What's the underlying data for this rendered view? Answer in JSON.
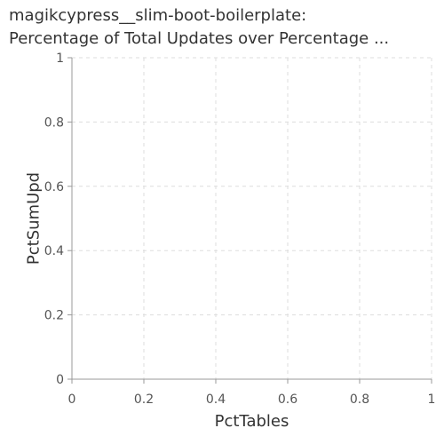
{
  "chart_data": {
    "type": "scatter",
    "title": "magikcypress__slim-boot-boilerplate:",
    "subtitle": "Percentage of Total Updates over Percentage ...",
    "xlabel": "PctTables",
    "ylabel": "PctSumUpd",
    "xlim": [
      0,
      1
    ],
    "ylim": [
      0,
      1
    ],
    "xticks": [
      "0",
      "0.2",
      "0.4",
      "0.6",
      "0.8",
      "1"
    ],
    "yticks": [
      "0",
      "0.2",
      "0.4",
      "0.6",
      "0.8",
      "1"
    ],
    "grid": true,
    "series": [
      {
        "x": [],
        "y": []
      }
    ]
  }
}
